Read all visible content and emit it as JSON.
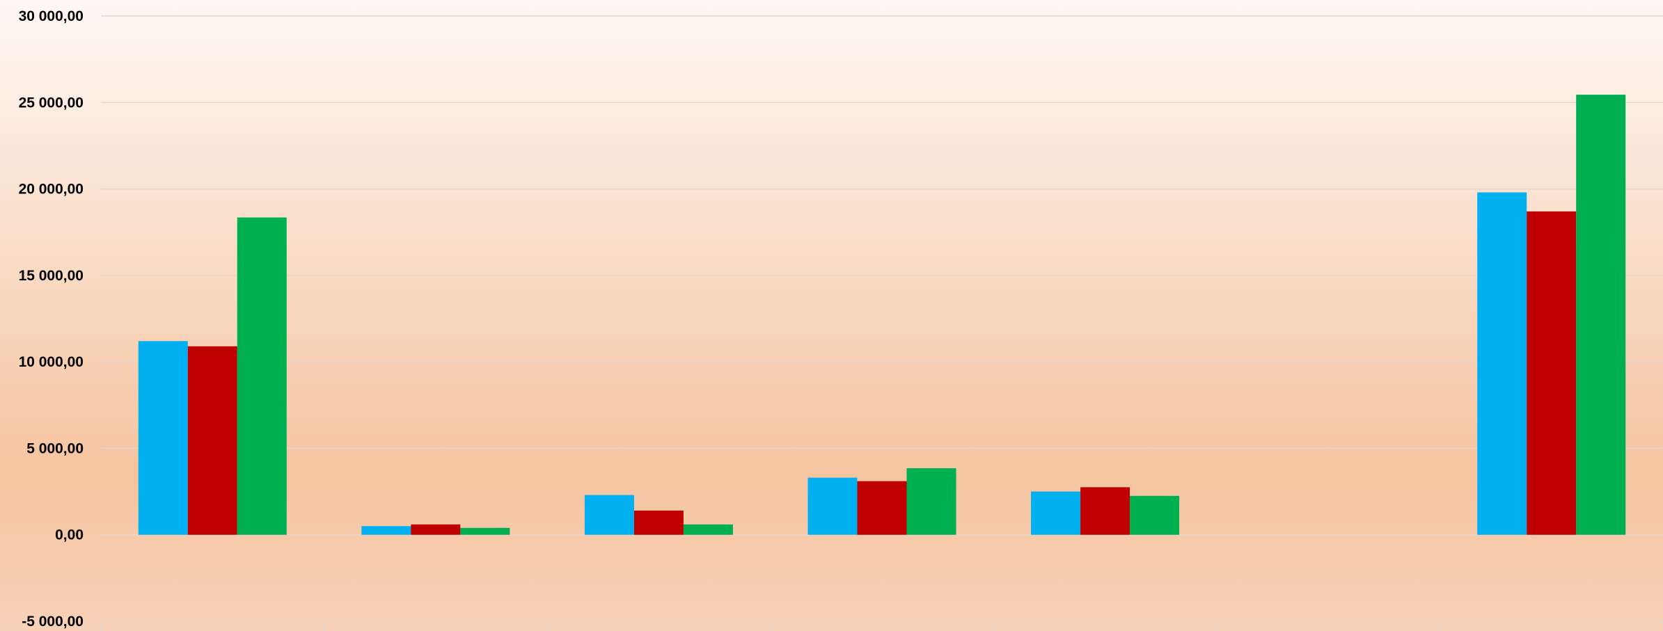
{
  "chart_data": {
    "type": "bar",
    "categories": [
      "",
      "",
      "",
      "",
      "",
      "",
      ""
    ],
    "series": [
      {
        "color": "#00B0F0",
        "values": [
          11200,
          500,
          2300,
          3300,
          2500,
          0,
          19800
        ]
      },
      {
        "color": "#C00000",
        "values": [
          10900,
          600,
          1400,
          3100,
          2750,
          0,
          18700
        ]
      },
      {
        "color": "#00B050",
        "values": [
          18350,
          400,
          600,
          3850,
          2250,
          0,
          25450
        ]
      }
    ],
    "ylim": [
      -5000,
      30000
    ],
    "yticks": [
      30000,
      25000,
      20000,
      15000,
      10000,
      5000,
      0,
      -5000
    ],
    "ytick_labels": [
      "30 000,00",
      "25 000,00",
      "20 000,00",
      "15 000,00",
      "10 000,00",
      "5 000,00",
      "0,00",
      "-5 000,00"
    ],
    "grid": true,
    "background_gradient": [
      "#FFF8F4",
      "#F5C4A0",
      "#F8D2B8"
    ],
    "gridline_color": "#E4D6CC"
  }
}
